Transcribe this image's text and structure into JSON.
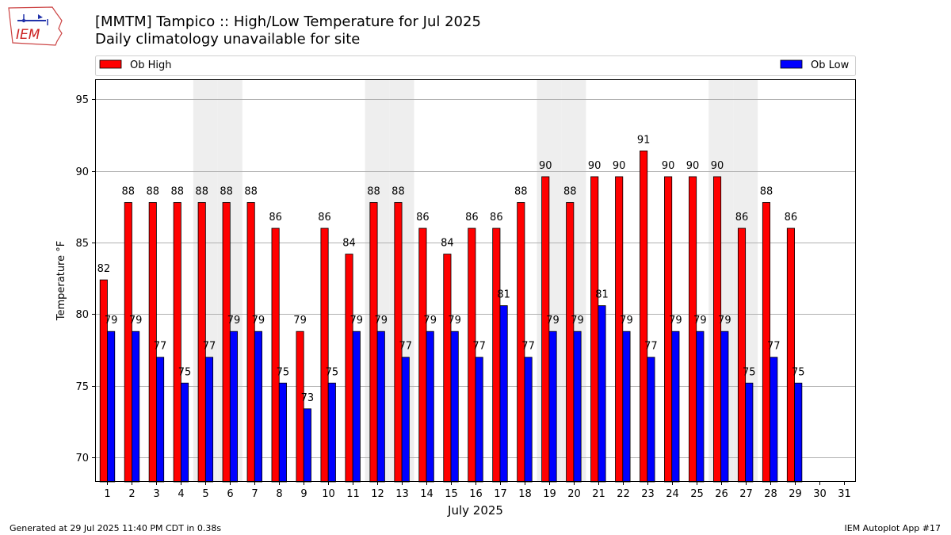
{
  "logo": {
    "text": "IEM"
  },
  "title": "[MMTM] Tampico :: High/Low Temperature for Jul 2025",
  "subtitle": "Daily climatology unavailable for site",
  "footer": {
    "left": "Generated at 29 Jul 2025 11:40 PM CDT in 0.38s",
    "right": "IEM Autoplot App #17"
  },
  "colors": {
    "high": "#ff0000",
    "low": "#0000ff",
    "weekend_shade": "#eeeeee",
    "grid": "#b0b0b0"
  },
  "chart_data": {
    "type": "bar",
    "xlabel": "July 2025",
    "ylabel": "Temperature °F",
    "ylim": [
      68.3,
      96.4
    ],
    "yticks": [
      70,
      75,
      80,
      85,
      90,
      95
    ],
    "categories": [
      "1",
      "2",
      "3",
      "4",
      "5",
      "6",
      "7",
      "8",
      "9",
      "10",
      "11",
      "12",
      "13",
      "14",
      "15",
      "16",
      "17",
      "18",
      "19",
      "20",
      "21",
      "22",
      "23",
      "24",
      "25",
      "26",
      "27",
      "28",
      "29",
      "30",
      "31"
    ],
    "grid": "horizontal",
    "legend_placement": "top, above plot",
    "shaded_days": [
      5,
      6,
      12,
      13,
      19,
      20,
      26,
      27
    ],
    "series": [
      {
        "name": "Ob High",
        "color": "#ff0000",
        "values": [
          82.4,
          87.8,
          87.8,
          87.8,
          87.8,
          87.8,
          87.8,
          86.0,
          78.8,
          86.0,
          84.2,
          87.8,
          87.8,
          86.0,
          84.2,
          86.0,
          86.0,
          87.8,
          89.6,
          87.8,
          89.6,
          89.6,
          91.4,
          89.6,
          89.6,
          89.6,
          86.0,
          87.8,
          86.0,
          null,
          null
        ],
        "labels": [
          "82",
          "88",
          "88",
          "88",
          "88",
          "88",
          "88",
          "86",
          "79",
          "86",
          "84",
          "88",
          "88",
          "86",
          "84",
          "86",
          "86",
          "88",
          "90",
          "88",
          "90",
          "90",
          "91",
          "90",
          "90",
          "90",
          "86",
          "88",
          "86",
          "",
          ""
        ]
      },
      {
        "name": "Ob Low",
        "color": "#0000ff",
        "values": [
          78.8,
          78.8,
          77.0,
          75.2,
          77.0,
          78.8,
          78.8,
          75.2,
          73.4,
          75.2,
          78.8,
          78.8,
          77.0,
          78.8,
          78.8,
          77.0,
          80.6,
          77.0,
          78.8,
          78.8,
          80.6,
          78.8,
          77.0,
          78.8,
          78.8,
          78.8,
          75.2,
          77.0,
          75.2,
          null,
          null
        ],
        "labels": [
          "79",
          "79",
          "77",
          "75",
          "77",
          "79",
          "79",
          "75",
          "73",
          "75",
          "79",
          "79",
          "77",
          "79",
          "79",
          "77",
          "81",
          "77",
          "79",
          "79",
          "81",
          "79",
          "77",
          "79",
          "79",
          "79",
          "75",
          "77",
          "75",
          "",
          ""
        ]
      }
    ]
  }
}
